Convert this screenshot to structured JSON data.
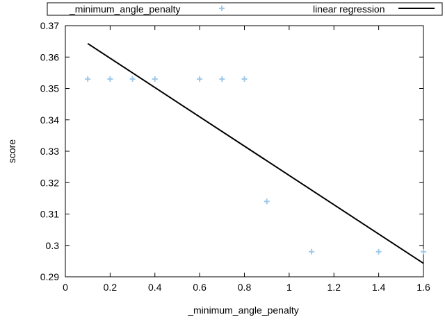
{
  "chart_data": {
    "type": "scatter",
    "title": "",
    "xlabel": "_minimum_angle_penalty",
    "ylabel": "score",
    "xlim": [
      0,
      1.6
    ],
    "ylim": [
      0.29,
      0.37
    ],
    "xticks": [
      "0",
      "0.2",
      "0.4",
      "0.6",
      "0.8",
      "1",
      "1.2",
      "1.4",
      "1.6"
    ],
    "yticks": [
      "0.29",
      "0.3",
      "0.31",
      "0.32",
      "0.33",
      "0.34",
      "0.35",
      "0.36",
      "0.37"
    ],
    "grid": false,
    "legend_placement": "top, outside plot area",
    "series": [
      {
        "name": "_minimum_angle_penalty",
        "kind": "scatter",
        "marker": "plus",
        "color": "#9ec9ea",
        "x": [
          0.1,
          0.2,
          0.3,
          0.4,
          0.6,
          0.7,
          0.8,
          0.9,
          1.1,
          1.4,
          1.6
        ],
        "y": [
          0.353,
          0.353,
          0.353,
          0.353,
          0.353,
          0.353,
          0.353,
          0.314,
          0.298,
          0.298,
          0.298
        ]
      },
      {
        "name": "linear regression",
        "kind": "line",
        "color": "#000000",
        "x": [
          0.1,
          1.6
        ],
        "y": [
          0.3643,
          0.2943
        ]
      }
    ]
  }
}
